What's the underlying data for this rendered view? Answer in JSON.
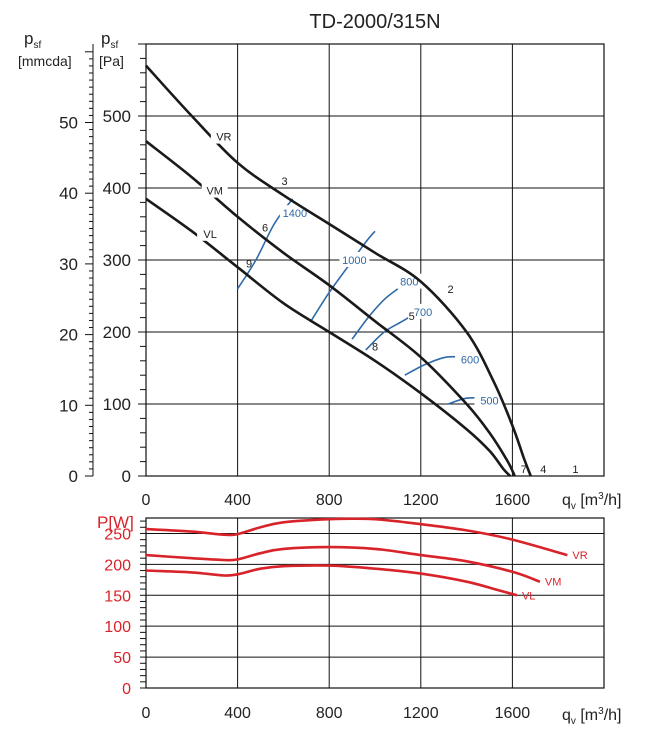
{
  "chart_data": [
    {
      "type": "line",
      "title": "TD-2000/315N",
      "ylabel_left": "[mmcda]",
      "ylabel_left_sym": "p",
      "ylabel_left_sub": "sf",
      "ylabel": "[Pa]",
      "ylabel_sym": "p",
      "ylabel_sub": "sf",
      "xlabel_sym": "q",
      "xlabel_sub": "v",
      "xlabel_unit_a": "[m",
      "xlabel_unit_sup": "3",
      "xlabel_unit_b": "/h]",
      "xlim": [
        0,
        2000
      ],
      "ylim": [
        0,
        600
      ],
      "xticks": [
        "0",
        "400",
        "800",
        "1200",
        "1600"
      ],
      "yticks_pa": [
        "0",
        "100",
        "200",
        "300",
        "400",
        "500"
      ],
      "yticks_mmcda": [
        "0",
        "10",
        "20",
        "30",
        "40",
        "50"
      ],
      "grid": true,
      "series": [
        {
          "name": "VR",
          "points": [
            [
              0,
              570
            ],
            [
              200,
              500
            ],
            [
              400,
              435
            ],
            [
              600,
              390
            ],
            [
              800,
              350
            ],
            [
              1000,
              310
            ],
            [
              1200,
              270
            ],
            [
              1400,
              200
            ],
            [
              1520,
              130
            ],
            [
              1600,
              70
            ],
            [
              1650,
              25
            ],
            [
              1680,
              0
            ]
          ]
        },
        {
          "name": "VM",
          "points": [
            [
              0,
              465
            ],
            [
              200,
              415
            ],
            [
              400,
              360
            ],
            [
              600,
              310
            ],
            [
              800,
              265
            ],
            [
              1000,
              215
            ],
            [
              1200,
              165
            ],
            [
              1400,
              100
            ],
            [
              1500,
              60
            ],
            [
              1580,
              20
            ],
            [
              1610,
              0
            ]
          ]
        },
        {
          "name": "VL",
          "points": [
            [
              0,
              385
            ],
            [
              200,
              340
            ],
            [
              400,
              290
            ],
            [
              600,
              240
            ],
            [
              800,
              200
            ],
            [
              1000,
              160
            ],
            [
              1200,
              115
            ],
            [
              1400,
              65
            ],
            [
              1500,
              35
            ],
            [
              1560,
              10
            ],
            [
              1590,
              0
            ]
          ]
        }
      ],
      "curve_labels": [
        {
          "text": "VR",
          "x": 340,
          "y": 470
        },
        {
          "text": "VM",
          "x": 300,
          "y": 395
        },
        {
          "text": "VL",
          "x": 280,
          "y": 335
        }
      ],
      "point_labels": [
        {
          "text": "1",
          "x": 1875,
          "y": 10
        },
        {
          "text": "2",
          "x": 1330,
          "y": 260
        },
        {
          "text": "3",
          "x": 605,
          "y": 410
        },
        {
          "text": "4",
          "x": 1735,
          "y": 10
        },
        {
          "text": "5",
          "x": 1160,
          "y": 222
        },
        {
          "text": "6",
          "x": 520,
          "y": 345
        },
        {
          "text": "7",
          "x": 1650,
          "y": 10
        },
        {
          "text": "8",
          "x": 1000,
          "y": 180
        },
        {
          "text": "9",
          "x": 450,
          "y": 295
        }
      ],
      "iso_rpm": [
        {
          "label": "1400",
          "label_x": 650,
          "label_y": 365,
          "points": [
            [
              400,
              260
            ],
            [
              480,
              300
            ],
            [
              560,
              350
            ],
            [
              640,
              385
            ]
          ]
        },
        {
          "label": "1000",
          "label_x": 910,
          "label_y": 300,
          "points": [
            [
              720,
              215
            ],
            [
              800,
              255
            ],
            [
              880,
              290
            ],
            [
              960,
              325
            ],
            [
              1000,
              340
            ]
          ]
        },
        {
          "label": "800",
          "label_x": 1150,
          "label_y": 270,
          "points": [
            [
              900,
              190
            ],
            [
              970,
              220
            ],
            [
              1040,
              245
            ],
            [
              1100,
              260
            ]
          ]
        },
        {
          "label": "700",
          "label_x": 1210,
          "label_y": 228,
          "points": [
            [
              960,
              175
            ],
            [
              1040,
              200
            ],
            [
              1120,
              215
            ],
            [
              1200,
              230
            ]
          ]
        },
        {
          "label": "600",
          "label_x": 1415,
          "label_y": 162,
          "points": [
            [
              1130,
              140
            ],
            [
              1220,
              155
            ],
            [
              1310,
              165
            ],
            [
              1400,
              165
            ]
          ]
        },
        {
          "label": "500",
          "label_x": 1500,
          "label_y": 105,
          "points": [
            [
              1320,
              100
            ],
            [
              1400,
              108
            ],
            [
              1480,
              107
            ],
            [
              1560,
              100
            ]
          ]
        }
      ]
    },
    {
      "type": "line",
      "ylabel": "P[W]",
      "xlabel_sym": "q",
      "xlabel_sub": "v",
      "xlabel_unit_a": "[m",
      "xlabel_unit_sup": "3",
      "xlabel_unit_b": "/h]",
      "xlim": [
        0,
        2000
      ],
      "ylim": [
        0,
        275
      ],
      "xticks": [
        "0",
        "400",
        "800",
        "1200",
        "1600"
      ],
      "yticks": [
        "0",
        "50",
        "100",
        "150",
        "200",
        "250"
      ],
      "grid": true,
      "series": [
        {
          "name": "VR",
          "points": [
            [
              0,
              257
            ],
            [
              200,
              253
            ],
            [
              340,
              248
            ],
            [
              400,
              249
            ],
            [
              500,
              260
            ],
            [
              600,
              268
            ],
            [
              800,
              273
            ],
            [
              1000,
              273
            ],
            [
              1200,
              265
            ],
            [
              1400,
              255
            ],
            [
              1600,
              240
            ],
            [
              1840,
              215
            ]
          ]
        },
        {
          "name": "VM",
          "points": [
            [
              0,
              215
            ],
            [
              200,
              210
            ],
            [
              340,
              207
            ],
            [
              400,
              208
            ],
            [
              500,
              218
            ],
            [
              600,
              225
            ],
            [
              800,
              228
            ],
            [
              1000,
              225
            ],
            [
              1200,
              215
            ],
            [
              1400,
              205
            ],
            [
              1600,
              188
            ],
            [
              1720,
              172
            ]
          ]
        },
        {
          "name": "VL",
          "points": [
            [
              0,
              190
            ],
            [
              200,
              187
            ],
            [
              340,
              182
            ],
            [
              400,
              184
            ],
            [
              500,
              193
            ],
            [
              600,
              197
            ],
            [
              800,
              198
            ],
            [
              1000,
              193
            ],
            [
              1200,
              185
            ],
            [
              1400,
              172
            ],
            [
              1550,
              157
            ],
            [
              1620,
              150
            ]
          ]
        }
      ]
    }
  ],
  "colors": {
    "grid": "#111111",
    "curve": "#1a1a1a",
    "iso_rpm": "#2e6aa8",
    "power": "#d8232a",
    "text": "#222222"
  }
}
